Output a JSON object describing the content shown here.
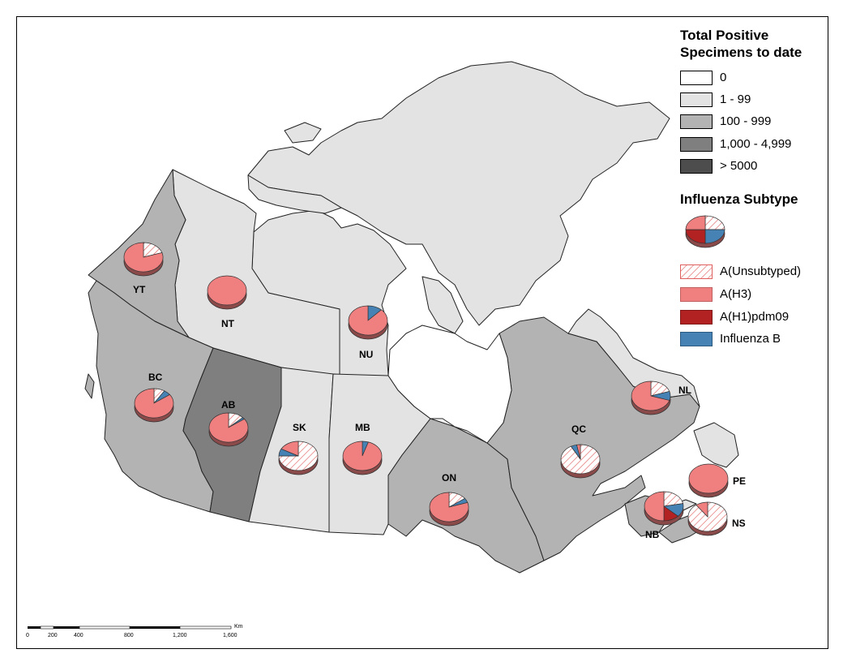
{
  "legend": {
    "positive_title": [
      "Total Positive",
      "Specimens to date"
    ],
    "positive_classes": [
      {
        "label": "0",
        "color": "#ffffff"
      },
      {
        "label": "1 - 99",
        "color": "#e3e3e3"
      },
      {
        "label": "100 - 999",
        "color": "#b3b3b3"
      },
      {
        "label": "1,000 - 4,999",
        "color": "#7f7f7f"
      },
      {
        "label": "> 5000",
        "color": "#4d4d4d"
      }
    ],
    "subtype_title": "Influenza Subtype",
    "subtypes": [
      {
        "label": "A(Unsubtyped)",
        "color": "#ffffff",
        "hatch": true
      },
      {
        "label": "A(H3)",
        "color": "#f08080",
        "hatch": false
      },
      {
        "label": "A(H1)pdm09",
        "color": "#b22222",
        "hatch": false
      },
      {
        "label": "Influenza B",
        "color": "#4682b4",
        "hatch": false
      }
    ]
  },
  "provinces": [
    {
      "code": "YT",
      "class": "100 - 999"
    },
    {
      "code": "NT",
      "class": "1 - 99"
    },
    {
      "code": "NU",
      "class": "1 - 99"
    },
    {
      "code": "BC",
      "class": "100 - 999"
    },
    {
      "code": "AB",
      "class": "1,000 - 4,999"
    },
    {
      "code": "SK",
      "class": "1 - 99"
    },
    {
      "code": "MB",
      "class": "1 - 99"
    },
    {
      "code": "ON",
      "class": "100 - 999"
    },
    {
      "code": "QC",
      "class": "100 - 999"
    },
    {
      "code": "NL",
      "class": "1 - 99"
    },
    {
      "code": "NB",
      "class": "100 - 999"
    },
    {
      "code": "NS",
      "class": "100 - 999"
    },
    {
      "code": "PE",
      "class": "1 - 99"
    }
  ],
  "pies": [
    {
      "code": "YT",
      "shares": {
        "unsubtyped": 0.2,
        "h3": 0.8,
        "h1": 0.0,
        "b": 0.0
      }
    },
    {
      "code": "NT",
      "shares": {
        "unsubtyped": 0.0,
        "h3": 1.0,
        "h1": 0.0,
        "b": 0.0
      }
    },
    {
      "code": "NU",
      "shares": {
        "unsubtyped": 0.0,
        "h3": 0.88,
        "h1": 0.0,
        "b": 0.12
      }
    },
    {
      "code": "BC",
      "shares": {
        "unsubtyped": 0.09,
        "h3": 0.85,
        "h1": 0.0,
        "b": 0.06
      }
    },
    {
      "code": "AB",
      "shares": {
        "unsubtyped": 0.13,
        "h3": 0.85,
        "h1": 0.0,
        "b": 0.02
      }
    },
    {
      "code": "SK",
      "shares": {
        "unsubtyped": 0.75,
        "h3": 0.17,
        "h1": 0.0,
        "b": 0.08
      }
    },
    {
      "code": "MB",
      "shares": {
        "unsubtyped": 0.0,
        "h3": 0.95,
        "h1": 0.0,
        "b": 0.05
      }
    },
    {
      "code": "ON",
      "shares": {
        "unsubtyped": 0.15,
        "h3": 0.8,
        "h1": 0.0,
        "b": 0.05
      }
    },
    {
      "code": "QC",
      "shares": {
        "unsubtyped": 0.92,
        "h3": 0.03,
        "h1": 0.0,
        "b": 0.05
      }
    },
    {
      "code": "NL",
      "shares": {
        "unsubtyped": 0.2,
        "h3": 0.7,
        "h1": 0.0,
        "b": 0.1
      }
    },
    {
      "code": "PE",
      "shares": {
        "unsubtyped": 0.0,
        "h3": 1.0,
        "h1": 0.0,
        "b": 0.0
      }
    },
    {
      "code": "NB",
      "shares": {
        "unsubtyped": 0.22,
        "h3": 0.5,
        "h1": 0.13,
        "b": 0.15
      }
    },
    {
      "code": "NS",
      "shares": {
        "unsubtyped": 0.9,
        "h3": 0.1,
        "h1": 0.0,
        "b": 0.0
      }
    }
  ],
  "scale_bar": {
    "unit": "Km",
    "ticks": [
      "0",
      "200",
      "400",
      "800",
      "1,200",
      "1,600"
    ]
  }
}
